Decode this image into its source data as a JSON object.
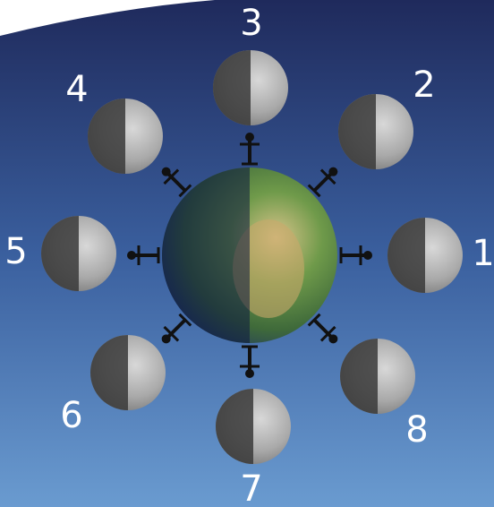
{
  "nodes": [
    {
      "label": "1"
    },
    {
      "label": "2"
    },
    {
      "label": "3"
    },
    {
      "label": "4"
    },
    {
      "label": "5"
    },
    {
      "label": "6"
    },
    {
      "label": "7"
    },
    {
      "label": "8"
    }
  ]
}
